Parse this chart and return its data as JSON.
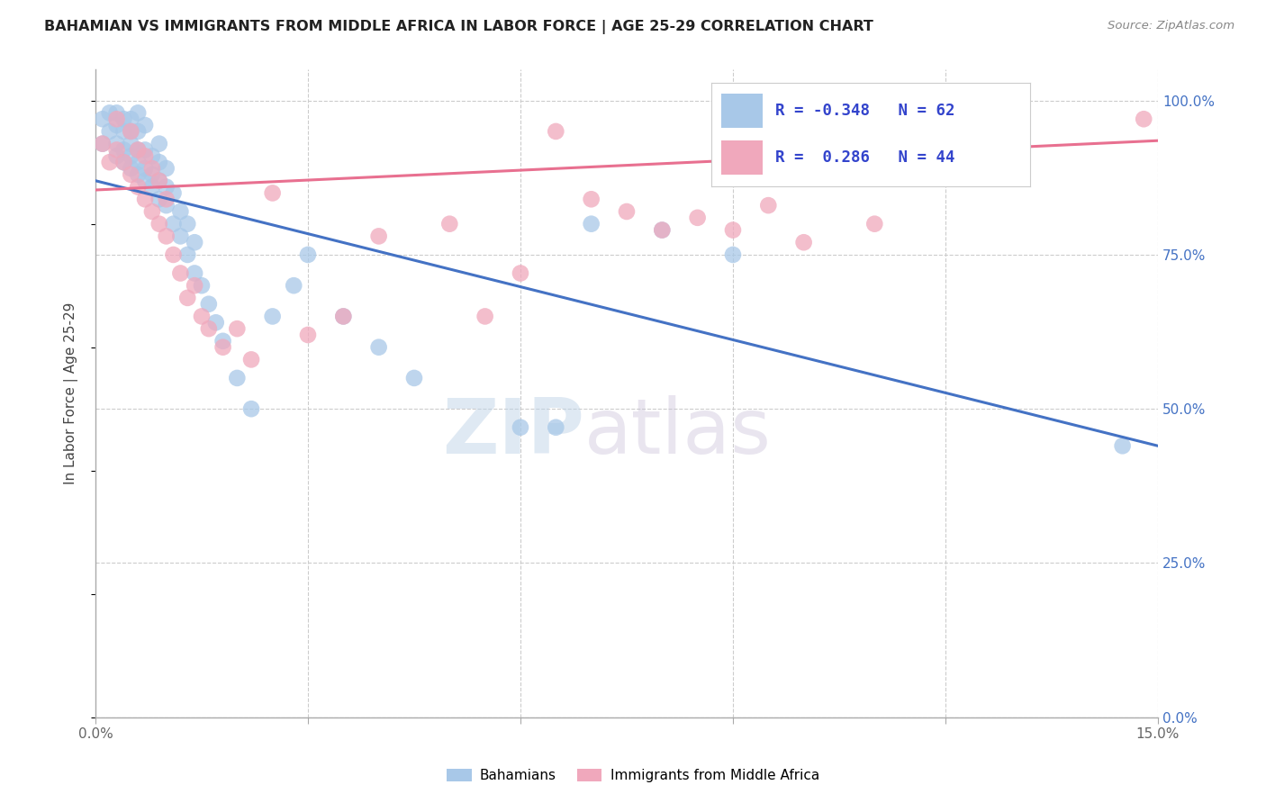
{
  "title": "BAHAMIAN VS IMMIGRANTS FROM MIDDLE AFRICA IN LABOR FORCE | AGE 25-29 CORRELATION CHART",
  "source": "Source: ZipAtlas.com",
  "ylabel": "In Labor Force | Age 25-29",
  "xlim": [
    0.0,
    0.15
  ],
  "ylim": [
    0.0,
    1.05
  ],
  "xticks": [
    0.0,
    0.03,
    0.06,
    0.09,
    0.12,
    0.15
  ],
  "xtick_labels": [
    "0.0%",
    "",
    "",
    "",
    "",
    "15.0%"
  ],
  "ytick_vals": [
    0.0,
    0.25,
    0.5,
    0.75,
    1.0
  ],
  "ytick_labels_right": [
    "0.0%",
    "25.0%",
    "50.0%",
    "75.0%",
    "100.0%"
  ],
  "grid_color": "#cccccc",
  "background_color": "#ffffff",
  "blue_color": "#A8C8E8",
  "pink_color": "#F0A8BC",
  "blue_line_color": "#4472C4",
  "pink_line_color": "#E87090",
  "r_blue": -0.348,
  "n_blue": 62,
  "r_pink": 0.286,
  "n_pink": 44,
  "legend_label_blue": "Bahamians",
  "legend_label_pink": "Immigrants from Middle Africa",
  "watermark_zip": "ZIP",
  "watermark_atlas": "atlas",
  "blue_scatter_x": [
    0.001,
    0.001,
    0.002,
    0.002,
    0.003,
    0.003,
    0.003,
    0.003,
    0.004,
    0.004,
    0.004,
    0.004,
    0.005,
    0.005,
    0.005,
    0.005,
    0.005,
    0.006,
    0.006,
    0.006,
    0.006,
    0.006,
    0.007,
    0.007,
    0.007,
    0.007,
    0.008,
    0.008,
    0.008,
    0.009,
    0.009,
    0.009,
    0.009,
    0.01,
    0.01,
    0.01,
    0.011,
    0.011,
    0.012,
    0.012,
    0.013,
    0.013,
    0.014,
    0.014,
    0.015,
    0.016,
    0.017,
    0.018,
    0.02,
    0.022,
    0.025,
    0.028,
    0.03,
    0.035,
    0.04,
    0.045,
    0.06,
    0.065,
    0.07,
    0.08,
    0.09,
    0.145
  ],
  "blue_scatter_y": [
    0.93,
    0.97,
    0.95,
    0.98,
    0.91,
    0.93,
    0.96,
    0.98,
    0.9,
    0.92,
    0.95,
    0.97,
    0.89,
    0.91,
    0.93,
    0.95,
    0.97,
    0.88,
    0.9,
    0.92,
    0.95,
    0.98,
    0.87,
    0.89,
    0.92,
    0.96,
    0.86,
    0.88,
    0.91,
    0.84,
    0.87,
    0.9,
    0.93,
    0.83,
    0.86,
    0.89,
    0.8,
    0.85,
    0.78,
    0.82,
    0.75,
    0.8,
    0.72,
    0.77,
    0.7,
    0.67,
    0.64,
    0.61,
    0.55,
    0.5,
    0.65,
    0.7,
    0.75,
    0.65,
    0.6,
    0.55,
    0.47,
    0.47,
    0.8,
    0.79,
    0.75,
    0.44
  ],
  "pink_scatter_x": [
    0.001,
    0.002,
    0.003,
    0.003,
    0.004,
    0.005,
    0.005,
    0.006,
    0.006,
    0.007,
    0.007,
    0.008,
    0.008,
    0.009,
    0.009,
    0.01,
    0.01,
    0.011,
    0.012,
    0.013,
    0.014,
    0.015,
    0.016,
    0.018,
    0.02,
    0.022,
    0.025,
    0.03,
    0.035,
    0.04,
    0.05,
    0.055,
    0.06,
    0.065,
    0.07,
    0.075,
    0.08,
    0.085,
    0.09,
    0.095,
    0.1,
    0.11,
    0.13,
    0.148
  ],
  "pink_scatter_y": [
    0.93,
    0.9,
    0.92,
    0.97,
    0.9,
    0.88,
    0.95,
    0.86,
    0.92,
    0.84,
    0.91,
    0.82,
    0.89,
    0.8,
    0.87,
    0.78,
    0.84,
    0.75,
    0.72,
    0.68,
    0.7,
    0.65,
    0.63,
    0.6,
    0.63,
    0.58,
    0.85,
    0.62,
    0.65,
    0.78,
    0.8,
    0.65,
    0.72,
    0.95,
    0.84,
    0.82,
    0.79,
    0.81,
    0.79,
    0.83,
    0.77,
    0.8,
    0.96,
    0.97
  ],
  "blue_line_x0": 0.0,
  "blue_line_y0": 0.87,
  "blue_line_x1": 0.15,
  "blue_line_y1": 0.44,
  "pink_line_x0": 0.0,
  "pink_line_y0": 0.855,
  "pink_line_x1": 0.15,
  "pink_line_y1": 0.935
}
